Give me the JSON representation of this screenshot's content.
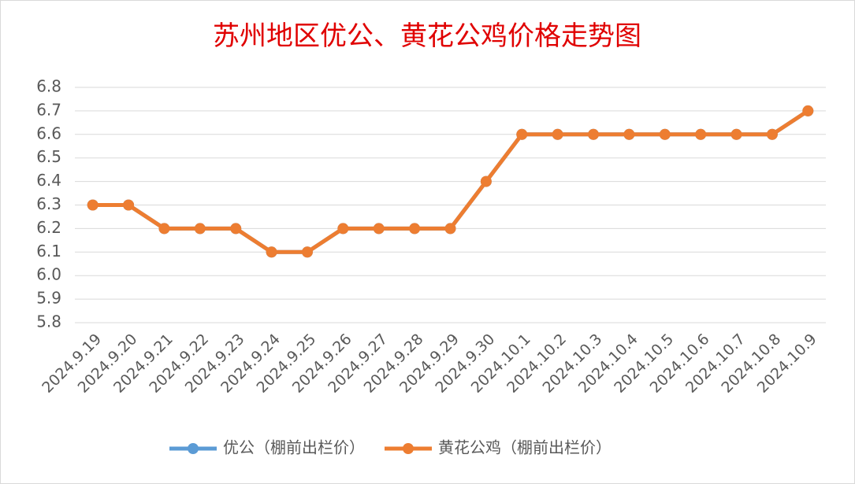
{
  "chart_data": {
    "type": "line",
    "title": "苏州地区优公、黄花公鸡价格走势图",
    "categories": [
      "2024.9.19",
      "2024.9.20",
      "2024.9.21",
      "2024.9.22",
      "2024.9.23",
      "2024.9.24",
      "2024.9.25",
      "2024.9.26",
      "2024.9.27",
      "2024.9.28",
      "2024.9.29",
      "2024.9.30",
      "2024.10.1",
      "2024.10.2",
      "2024.10.3",
      "2024.10.4",
      "2024.10.5",
      "2024.10.6",
      "2024.10.7",
      "2024.10.8",
      "2024.10.9"
    ],
    "series": [
      {
        "name": "优公（棚前出栏价）",
        "color": "#5b9bd5",
        "values": [
          6.3,
          6.3,
          6.2,
          6.2,
          6.2,
          6.1,
          6.1,
          6.2,
          6.2,
          6.2,
          6.2,
          6.4,
          6.6,
          6.6,
          6.6,
          6.6,
          6.6,
          6.6,
          6.6,
          6.6,
          6.7
        ]
      },
      {
        "name": "黄花公鸡（棚前出栏价）",
        "color": "#ed7d31",
        "values": [
          6.3,
          6.3,
          6.2,
          6.2,
          6.2,
          6.1,
          6.1,
          6.2,
          6.2,
          6.2,
          6.2,
          6.4,
          6.6,
          6.6,
          6.6,
          6.6,
          6.6,
          6.6,
          6.6,
          6.6,
          6.7
        ]
      }
    ],
    "ylim": [
      5.8,
      6.8
    ],
    "yticks": [
      5.8,
      5.9,
      {
        "value": 6,
        "label": "6.0"
      },
      6.1,
      6.2,
      6.3,
      6.4,
      6.5,
      6.6,
      6.7,
      6.8
    ],
    "grid": true,
    "legend": "bottom"
  }
}
